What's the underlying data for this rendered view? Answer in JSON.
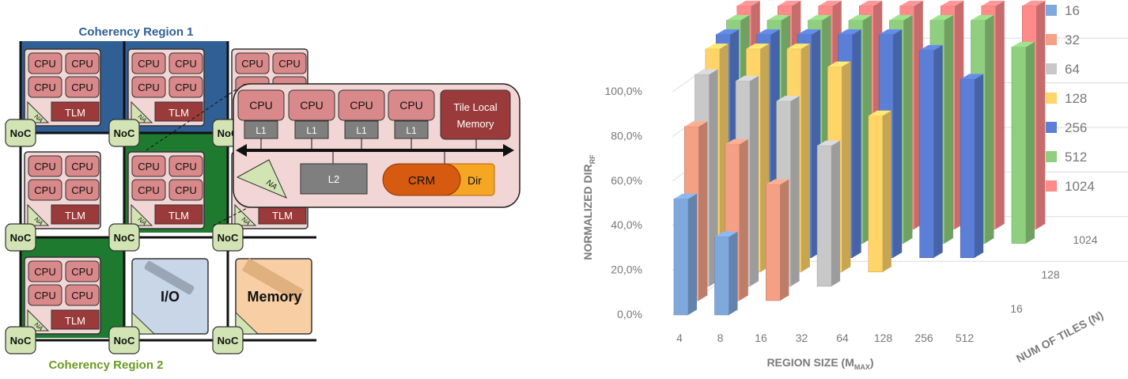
{
  "diagram": {
    "region1_label": "Coherency Region 1",
    "region2_label": "Coherency Region 2",
    "cpu_label": "CPU",
    "tlm_label": "TLM",
    "noc_label": "NoC",
    "na_label": "NA",
    "io_label": "I/O",
    "memory_label": "Memory",
    "detail": {
      "cpu_label": "CPU",
      "l1_label": "L1",
      "l2_label": "L2",
      "tlm_label_line1": "Tile Local",
      "tlm_label_line2": "Memory",
      "crm_label": "CRM",
      "dir_label": "Dir",
      "na_label": "NA"
    },
    "colors": {
      "region1": "#2f5f95",
      "region2": "#1e7a2e",
      "tile_bg": "#f2d5d5",
      "cpu": "#d98989",
      "tlm": "#9b3a3a",
      "noc": "#d3e4b4",
      "crm": "#d65a0f",
      "dir": "#f5a623",
      "l_box": "#7f7f7f",
      "io_bg": "#c9d6e8",
      "mem_bg": "#f8cfa4"
    }
  },
  "chart_data": {
    "type": "bar",
    "ylabel": "NORMALIZED DIR",
    "ylabel_subscript": "RF",
    "xlabel": "REGION SIZE (M",
    "xlabel_subscript": "MAX",
    "xlabel_suffix": ")",
    "zlabel": "NUM OF TILES (N)",
    "categories": [
      "4",
      "8",
      "16",
      "32",
      "64",
      "128",
      "256",
      "512"
    ],
    "depth_ticks": [
      "16",
      "128",
      "1024"
    ],
    "y_ticks": [
      "0,0%",
      "20,0%",
      "40,0%",
      "60,0%",
      "80,0%",
      "100,0%"
    ],
    "ylim": [
      0,
      100
    ],
    "legend_position": "right",
    "series": [
      {
        "name": "16",
        "color": "#7fa8dc",
        "values": [
          52,
          35,
          null,
          null,
          null,
          null,
          null,
          null
        ]
      },
      {
        "name": "32",
        "color": "#f4a085",
        "values": [
          78,
          70,
          52,
          null,
          null,
          null,
          null,
          null
        ]
      },
      {
        "name": "64",
        "color": "#c8c8c8",
        "values": [
          95,
          92,
          83,
          63,
          null,
          null,
          null,
          null
        ]
      },
      {
        "name": "128",
        "color": "#ffd56a",
        "values": [
          100,
          100,
          100,
          92,
          70,
          null,
          null,
          null
        ]
      },
      {
        "name": "256",
        "color": "#5b7fd6",
        "values": [
          100,
          100,
          100,
          100,
          100,
          93,
          80,
          null
        ]
      },
      {
        "name": "512",
        "color": "#8fcf7f",
        "values": [
          100,
          100,
          100,
          100,
          100,
          100,
          100,
          88
        ]
      },
      {
        "name": "1024",
        "color": "#ff8a8a",
        "values": [
          100,
          100,
          100,
          100,
          100,
          100,
          100,
          100
        ]
      }
    ]
  }
}
